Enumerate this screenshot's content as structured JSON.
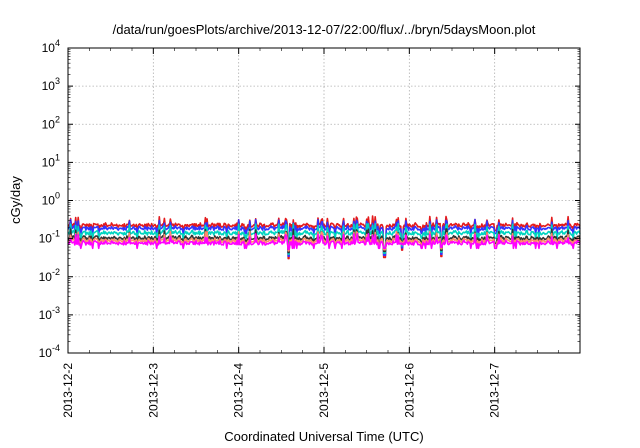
{
  "chart_data": {
    "type": "line",
    "title": "/data/run/goesPlots/archive/2013-12-07/22:00/flux/../bryn/5daysMoon.plot",
    "xlabel": "Coordinated Universal Time (UTC)",
    "ylabel": "cGy/day",
    "y_scale": "log",
    "ylim": [
      0.0001,
      10000
    ],
    "y_ticks": [
      {
        "base": "10",
        "exp": "4",
        "value": 10000
      },
      {
        "base": "10",
        "exp": "3",
        "value": 1000
      },
      {
        "base": "10",
        "exp": "2",
        "value": 100
      },
      {
        "base": "10",
        "exp": "1",
        "value": 10
      },
      {
        "base": "10",
        "exp": "0",
        "value": 1
      },
      {
        "base": "10",
        "exp": "-1",
        "value": 0.1
      },
      {
        "base": "10",
        "exp": "-2",
        "value": 0.01
      },
      {
        "base": "10",
        "exp": "-3",
        "value": 0.001
      },
      {
        "base": "10",
        "exp": "-4",
        "value": 0.0001
      }
    ],
    "xlim": [
      "2013-12-02",
      "2013-12-08"
    ],
    "x_ticks": [
      "2013-12-2",
      "2013-12-3",
      "2013-12-4",
      "2013-12-5",
      "2013-12-6",
      "2013-12-7"
    ],
    "grid": true,
    "series_colors": [
      "#e31a1c",
      "#3333ff",
      "#00d4c0",
      "#333333",
      "#ff8c69",
      "#ff00ff"
    ],
    "series_levels": [
      0.24,
      0.2,
      0.15,
      0.11,
      0.095,
      0.082
    ],
    "dips": [
      {
        "x": "2013-12-04T14:00",
        "value": 0.03
      },
      {
        "x": "2013-12-05T17:00",
        "value": 0.032
      },
      {
        "x": "2013-12-06T09:00",
        "value": 0.034
      },
      {
        "x": "2013-12-05T22:00",
        "value": 0.05
      }
    ]
  }
}
